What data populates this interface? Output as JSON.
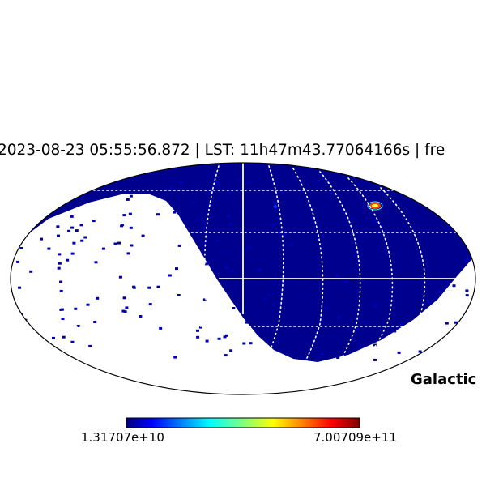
{
  "title": "2023-08-23 05:55:56.872 | LST: 11h47m43.77064166s  |  fre",
  "coord_label": "Galactic",
  "colorbar": {
    "min_label": "1.31707e+10",
    "max_label": "7.00709e+11",
    "colormap": "jet"
  },
  "colors": {
    "map_fill": "#00008e",
    "graticule": "#ffffff",
    "outline": "#000000",
    "background": "#ffffff"
  },
  "projection": "mollweide"
}
